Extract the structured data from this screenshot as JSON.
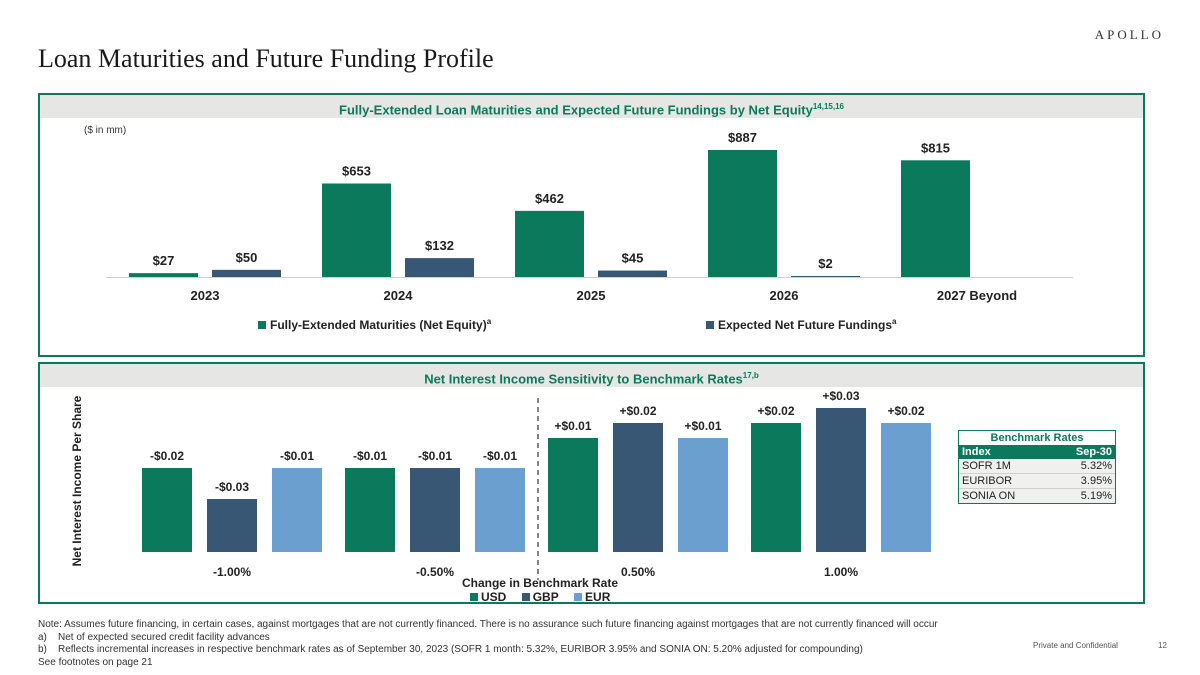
{
  "header": {
    "brand": "APOLLO",
    "title": "Loan Maturities and Future Funding Profile"
  },
  "colors": {
    "green": "#0b7a5c",
    "navy": "#375775",
    "lightblue": "#6b9fd0",
    "panel_border": "#0b7a5c"
  },
  "chart_data": [
    {
      "type": "bar",
      "title": "Fully-Extended Loan Maturities and Expected Future Fundings by Net Equity",
      "title_superscript": "14,15,16",
      "unit_note": "($ in mm)",
      "categories": [
        "2023",
        "2024",
        "2025",
        "2026",
        "2027 Beyond"
      ],
      "series": [
        {
          "name": "Fully-Extended Maturities (Net Equity)",
          "superscript": "a",
          "color": "#0b7a5c",
          "values": [
            27,
            653,
            462,
            887,
            815
          ],
          "labels": [
            "$27",
            "$653",
            "$462",
            "$887",
            "$815"
          ]
        },
        {
          "name": "Expected Net Future Fundings",
          "superscript": "a",
          "color": "#375775",
          "values": [
            50,
            132,
            45,
            2,
            null
          ],
          "labels": [
            "$50",
            "$132",
            "$45",
            "$2",
            ""
          ]
        }
      ],
      "ylim": [
        0,
        887
      ]
    },
    {
      "type": "bar",
      "title": "Net Interest Income Sensitivity to Benchmark Rates",
      "title_superscript": "17,b",
      "xlabel": "Change in Benchmark Rate",
      "ylabel": "Net Interest Income Per Share",
      "categories": [
        "-1.00%",
        "-0.50%",
        "0.50%",
        "1.00%"
      ],
      "series": [
        {
          "name": "USD",
          "color": "#0b7a5c",
          "values": [
            -0.02,
            -0.01,
            0.01,
            0.02
          ],
          "labels": [
            "-$0.02",
            "-$0.01",
            "+$0.01",
            "+$0.02"
          ]
        },
        {
          "name": "GBP",
          "color": "#375775",
          "values": [
            -0.03,
            -0.01,
            0.02,
            0.03
          ],
          "labels": [
            "-$0.03",
            "-$0.01",
            "+$0.02",
            "+$0.03"
          ]
        },
        {
          "name": "EUR",
          "color": "#6b9fd0",
          "values": [
            -0.01,
            -0.01,
            0.01,
            0.02
          ],
          "labels": [
            "-$0.01",
            "-$0.01",
            "+$0.01",
            "+$0.02"
          ]
        }
      ]
    }
  ],
  "rates_table": {
    "title": "Benchmark Rates",
    "headers": [
      "Index",
      "Sep-30"
    ],
    "rows": [
      {
        "index": "SOFR 1M",
        "value": "5.32%"
      },
      {
        "index": "EURIBOR",
        "value": "3.95%"
      },
      {
        "index": "SONIA ON",
        "value": "5.19%"
      }
    ]
  },
  "footnotes": {
    "note": "Note: Assumes future financing, in certain cases, against mortgages that are not currently financed. There is no assurance such future financing against mortgages that are not currently financed will occur",
    "a_marker": "a)",
    "a_text": "Net of expected secured credit facility advances",
    "b_marker": "b)",
    "b_text": "Reflects incremental increases in respective benchmark rates as of September 30, 2023 (SOFR 1 month: 5.32%, EURIBOR 3.95% and SONIA ON: 5.20% adjusted for compounding)",
    "see": "See footnotes on page 21"
  },
  "footer": {
    "confidential": "Private and Confidential",
    "page_number": "12"
  }
}
